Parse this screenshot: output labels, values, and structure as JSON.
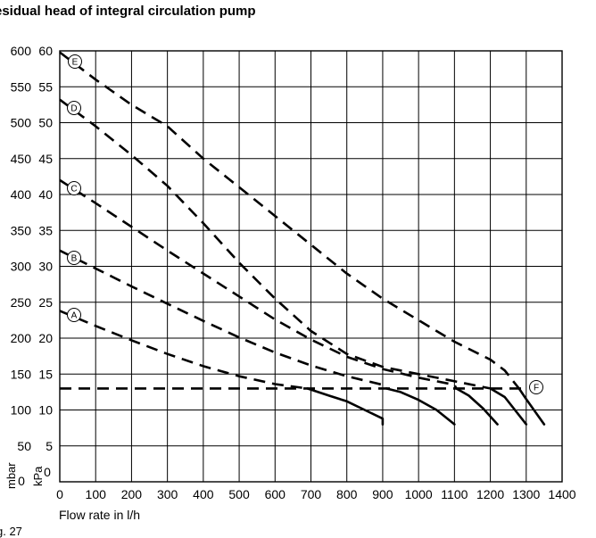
{
  "title": "esidual head of integral circulation pump",
  "caption": "g. 27",
  "chart_data": {
    "type": "line",
    "title": "esidual head of integral circulation pump",
    "xlabel": "Flow rate in l/h",
    "ylabel_primary": "mbar",
    "ylabel_secondary": "kPa",
    "xlim": [
      0,
      1400
    ],
    "ylim_mbar": [
      0,
      600
    ],
    "ylim_kpa": [
      0,
      60
    ],
    "grid": true,
    "x_ticks": [
      "0",
      "100",
      "200",
      "300",
      "400",
      "500",
      "600",
      "700",
      "800",
      "900",
      "1000",
      "1100",
      "1200",
      "1300",
      "1400"
    ],
    "y_ticks_mbar": [
      "0",
      "50",
      "100",
      "150",
      "200",
      "250",
      "300",
      "350",
      "400",
      "450",
      "500",
      "550",
      "600"
    ],
    "y_ticks_kpa": [
      "0",
      "5",
      "10",
      "15",
      "20",
      "25",
      "30",
      "35",
      "40",
      "45",
      "50",
      "55",
      "60"
    ],
    "series": [
      {
        "name": "A",
        "dashed": [
          [
            0,
            238
          ],
          [
            100,
            217
          ],
          [
            200,
            197
          ],
          [
            300,
            178
          ],
          [
            400,
            161
          ],
          [
            500,
            147
          ],
          [
            600,
            136
          ],
          [
            690,
            130
          ]
        ],
        "solid": [
          [
            690,
            130
          ],
          [
            750,
            120
          ],
          [
            800,
            112
          ],
          [
            850,
            100
          ],
          [
            900,
            88
          ],
          [
            900,
            80
          ]
        ]
      },
      {
        "name": "B",
        "dashed": [
          [
            0,
            322
          ],
          [
            100,
            297
          ],
          [
            200,
            272
          ],
          [
            300,
            248
          ],
          [
            400,
            224
          ],
          [
            500,
            201
          ],
          [
            600,
            180
          ],
          [
            700,
            162
          ],
          [
            800,
            147
          ],
          [
            900,
            135
          ],
          [
            910,
            130
          ]
        ],
        "solid": [
          [
            910,
            130
          ],
          [
            950,
            125
          ],
          [
            1000,
            114
          ],
          [
            1050,
            100
          ],
          [
            1100,
            80
          ]
        ]
      },
      {
        "name": "C",
        "dashed": [
          [
            0,
            420
          ],
          [
            100,
            388
          ],
          [
            200,
            355
          ],
          [
            300,
            322
          ],
          [
            400,
            290
          ],
          [
            500,
            258
          ],
          [
            600,
            226
          ],
          [
            700,
            198
          ],
          [
            800,
            174
          ],
          [
            900,
            157
          ],
          [
            1000,
            145
          ],
          [
            1100,
            135
          ],
          [
            1105,
            130
          ]
        ],
        "solid": [
          [
            1105,
            130
          ],
          [
            1140,
            120
          ],
          [
            1180,
            102
          ],
          [
            1220,
            80
          ]
        ]
      },
      {
        "name": "D",
        "dashed": [
          [
            0,
            532
          ],
          [
            100,
            495
          ],
          [
            200,
            455
          ],
          [
            300,
            412
          ],
          [
            400,
            360
          ],
          [
            500,
            305
          ],
          [
            600,
            255
          ],
          [
            700,
            210
          ],
          [
            800,
            178
          ],
          [
            900,
            160
          ],
          [
            1000,
            150
          ],
          [
            1100,
            140
          ],
          [
            1200,
            130
          ]
        ],
        "solid": [
          [
            1200,
            130
          ],
          [
            1240,
            118
          ],
          [
            1300,
            80
          ]
        ]
      },
      {
        "name": "E",
        "dashed": [
          [
            0,
            598
          ],
          [
            100,
            560
          ],
          [
            200,
            525
          ],
          [
            300,
            495
          ],
          [
            400,
            450
          ],
          [
            500,
            410
          ],
          [
            600,
            370
          ],
          [
            700,
            330
          ],
          [
            800,
            290
          ],
          [
            900,
            255
          ],
          [
            1000,
            225
          ],
          [
            1100,
            195
          ],
          [
            1200,
            170
          ],
          [
            1240,
            155
          ],
          [
            1280,
            130
          ]
        ],
        "solid": [
          [
            1280,
            130
          ],
          [
            1300,
            115
          ],
          [
            1350,
            80
          ]
        ]
      },
      {
        "name": "F",
        "dashed": [
          [
            0,
            130
          ],
          [
            1300,
            130
          ]
        ],
        "solid": []
      }
    ]
  }
}
